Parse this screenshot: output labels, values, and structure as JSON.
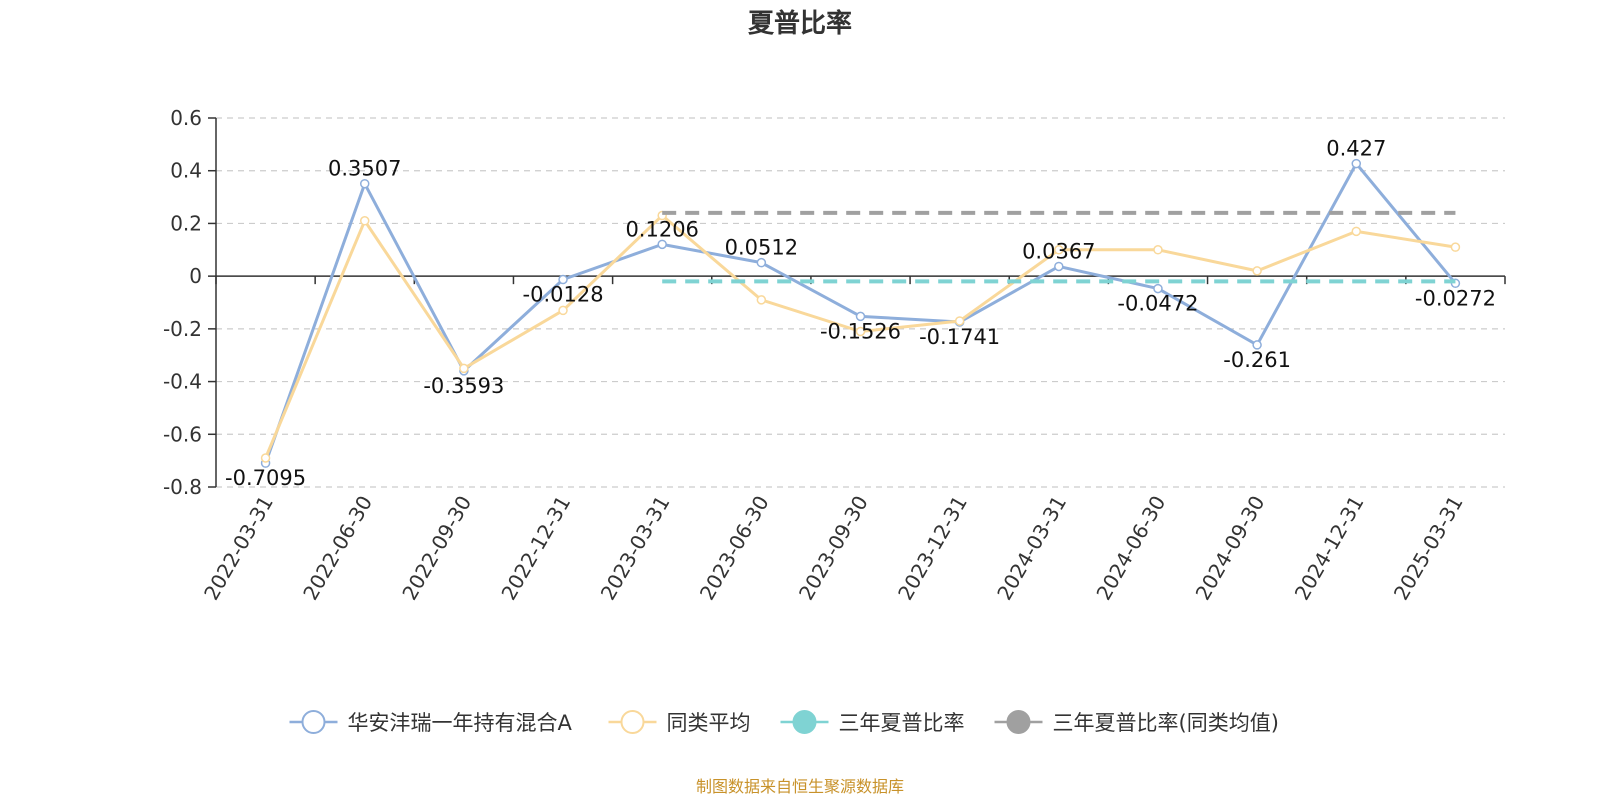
{
  "chart_data": {
    "type": "line",
    "title": "夏普比率",
    "categories": [
      "2022-03-31",
      "2022-06-30",
      "2022-09-30",
      "2022-12-31",
      "2023-03-31",
      "2023-06-30",
      "2023-09-30",
      "2023-12-31",
      "2024-03-31",
      "2024-06-30",
      "2024-09-30",
      "2024-12-31",
      "2025-03-31"
    ],
    "ylim": [
      -0.8,
      0.6
    ],
    "yticks": [
      "0.6",
      "0.4",
      "0.2",
      "0",
      "-0.2",
      "-0.4",
      "-0.6",
      "-0.8"
    ],
    "ytick_values": [
      0.6,
      0.4,
      0.2,
      0,
      -0.2,
      -0.4,
      -0.6,
      -0.8
    ],
    "grid": true,
    "legend_position": "bottom",
    "series": [
      {
        "name": "华安沣瑞一年持有混合A",
        "color": "#8eaedb",
        "values": [
          -0.7095,
          0.3507,
          -0.3593,
          -0.0128,
          0.1206,
          0.0512,
          -0.1526,
          -0.1741,
          0.0367,
          -0.0472,
          -0.261,
          0.427,
          -0.0272
        ],
        "labels": [
          "-0.7095",
          "0.3507",
          "-0.3593",
          "-0.0128",
          "0.1206",
          "0.0512",
          "-0.1526",
          "-0.1741",
          "0.0367",
          "-0.0472",
          "-0.261",
          "0.427",
          "-0.0272"
        ]
      },
      {
        "name": "同类平均",
        "color": "#f9d89a",
        "values": [
          -0.69,
          0.21,
          -0.35,
          -0.13,
          0.23,
          -0.09,
          -0.21,
          -0.17,
          0.1,
          0.1,
          0.02,
          0.17,
          0.11
        ]
      },
      {
        "name": "三年夏普比率",
        "color": "#7fd3d3",
        "dashed": true,
        "value": -0.02,
        "from_index": 4,
        "to_index": 12
      },
      {
        "name": "三年夏普比率(同类均值)",
        "color": "#a0a0a0",
        "dashed": true,
        "value": 0.24,
        "from_index": 4,
        "to_index": 12
      }
    ],
    "source_note": "制图数据来自恒生聚源数据库"
  }
}
